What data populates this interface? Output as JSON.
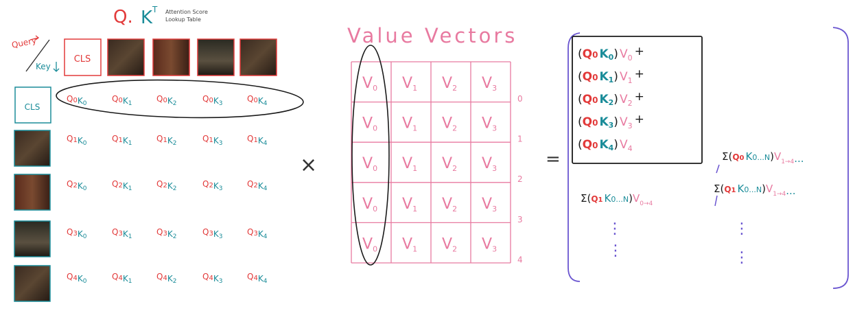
{
  "qkt": {
    "title_q": "Q.",
    "title_k": "K",
    "title_t": "T",
    "subtitle_line1": "Attention Score",
    "subtitle_line2": "Lookup Table",
    "query_label": "Query",
    "key_label": "Key",
    "cls_label": "CLS",
    "rows": [
      [
        "Q",
        "0",
        [
          "0",
          "1",
          "2",
          "3",
          "4"
        ]
      ],
      [
        "Q",
        "1",
        [
          "0",
          "1",
          "2",
          "3",
          "4"
        ]
      ],
      [
        "Q",
        "2",
        [
          "0",
          "1",
          "2",
          "3",
          "4"
        ]
      ],
      [
        "Q",
        "3",
        [
          "0",
          "1",
          "2",
          "3",
          "4"
        ]
      ],
      [
        "Q",
        "4",
        [
          "0",
          "1",
          "2",
          "3",
          "4"
        ]
      ]
    ],
    "k_letter": "K"
  },
  "operators": {
    "times": "×",
    "equals": "="
  },
  "value_vectors": {
    "title": "Value Vectors",
    "columns": [
      "V",
      "V",
      "V",
      "V"
    ],
    "column_subs": [
      "0",
      "1",
      "2",
      "3"
    ],
    "row_labels": [
      "0",
      "1",
      "2",
      "3",
      "4"
    ]
  },
  "result": {
    "box_terms": [
      {
        "q": "Q",
        "qs": "0",
        "k": "K",
        "ks": "0",
        "v": "V",
        "vs": "0",
        "op": "+"
      },
      {
        "q": "Q",
        "qs": "0",
        "k": "K",
        "ks": "1",
        "v": "V",
        "vs": "1",
        "op": "+"
      },
      {
        "q": "Q",
        "qs": "0",
        "k": "K",
        "ks": "2",
        "v": "V",
        "vs": "2",
        "op": "+"
      },
      {
        "q": "Q",
        "qs": "0",
        "k": "K",
        "ks": "3",
        "v": "V",
        "vs": "3",
        "op": "+"
      },
      {
        "q": "Q",
        "qs": "0",
        "k": "K",
        "ks": "4",
        "v": "V",
        "vs": "4",
        "op": ""
      }
    ],
    "sum_row1": {
      "sigma": "Σ",
      "q": "Q",
      "qs": "1",
      "k": "K",
      "ks": "0...N",
      "v": "V",
      "vs": "0→4"
    },
    "sum_top_right": {
      "sigma": "Σ",
      "q": "Q",
      "qs": "0",
      "k": "K",
      "ks": "0...N",
      "v": "V",
      "vs": "1→4",
      "dots": "..."
    },
    "sum_mid_right": {
      "sigma": "Σ",
      "q": "Q",
      "qs": "1",
      "k": "K",
      "ks": "0...N",
      "v": "V",
      "vs": "1→4",
      "dots": "..."
    },
    "vdots": "⋮"
  },
  "colors": {
    "red": "#e23a3a",
    "teal": "#1a8c99",
    "pink": "#e87aa0",
    "purple": "#6a55d0",
    "black": "#1a1a1a"
  }
}
